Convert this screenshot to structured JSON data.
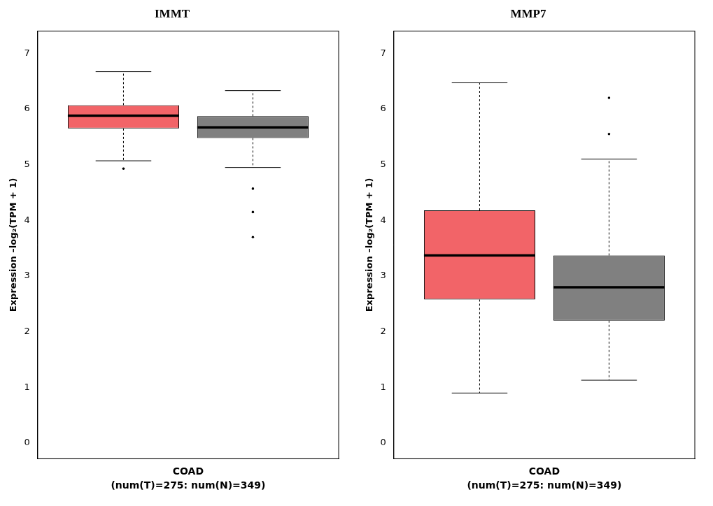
{
  "chart_data": [
    {
      "type": "boxplot",
      "title": "IMMT",
      "y_label": "Expression –log₂(TPM + 1)",
      "x_label": "(num(T)=275: num(N)=349)",
      "categories": [
        "COAD"
      ],
      "ylim": [
        -0.28,
        7.4
      ],
      "yticks": [
        0,
        1,
        2,
        3,
        4,
        5,
        6,
        7
      ],
      "grid": false,
      "series": [
        {
          "name": "T",
          "color": "#f26468",
          "min": 5.07,
          "q1": 5.65,
          "median": 5.88,
          "q3": 6.07,
          "max": 6.67,
          "outliers": [
            4.93
          ]
        },
        {
          "name": "N",
          "color": "#808080",
          "min": 4.95,
          "q1": 5.48,
          "median": 5.67,
          "q3": 5.87,
          "max": 6.33,
          "outliers": [
            4.57,
            4.15,
            3.7
          ]
        }
      ]
    },
    {
      "type": "boxplot",
      "title": "MMP7",
      "y_label": "Expression –log₂(TPM + 1)",
      "x_label": "(num(T)=275: num(N)=349)",
      "categories": [
        "COAD"
      ],
      "ylim": [
        -0.28,
        7.4
      ],
      "yticks": [
        0,
        1,
        2,
        3,
        4,
        5,
        6,
        7
      ],
      "grid": false,
      "series": [
        {
          "name": "T",
          "color": "#f26468",
          "min": 0.9,
          "q1": 2.58,
          "median": 3.37,
          "q3": 4.18,
          "max": 6.47,
          "outliers": []
        },
        {
          "name": "N",
          "color": "#808080",
          "min": 1.13,
          "q1": 2.2,
          "median": 2.8,
          "q3": 3.37,
          "max": 5.1,
          "outliers": [
            6.2,
            5.55
          ]
        }
      ]
    }
  ]
}
